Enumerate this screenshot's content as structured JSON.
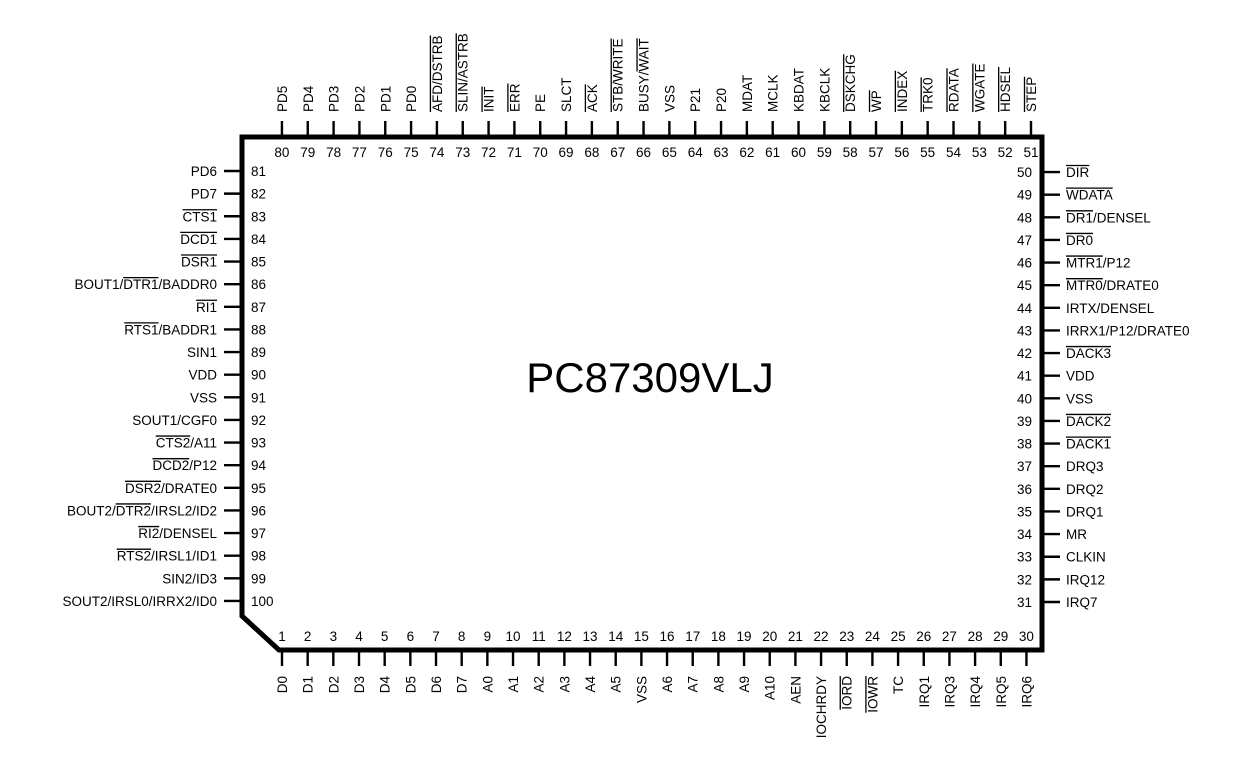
{
  "chip_name": "PC87309VLJ",
  "pins": [
    {
      "n": "1",
      "label": "D0"
    },
    {
      "n": "2",
      "label": "D1"
    },
    {
      "n": "3",
      "label": "D2"
    },
    {
      "n": "4",
      "label": "D3"
    },
    {
      "n": "5",
      "label": "D4"
    },
    {
      "n": "6",
      "label": "D5"
    },
    {
      "n": "7",
      "label": "D6"
    },
    {
      "n": "8",
      "label": "D7"
    },
    {
      "n": "9",
      "label": "A0"
    },
    {
      "n": "10",
      "label": "A1"
    },
    {
      "n": "11",
      "label": "A2"
    },
    {
      "n": "12",
      "label": "A3"
    },
    {
      "n": "13",
      "label": "A4"
    },
    {
      "n": "14",
      "label": "A5"
    },
    {
      "n": "15",
      "label": "VSS"
    },
    {
      "n": "16",
      "label": "A6"
    },
    {
      "n": "17",
      "label": "A7"
    },
    {
      "n": "18",
      "label": "A8"
    },
    {
      "n": "19",
      "label": "A9"
    },
    {
      "n": "20",
      "label": "A10"
    },
    {
      "n": "21",
      "label": "AEN"
    },
    {
      "n": "22",
      "label": "IOCHRDY"
    },
    {
      "n": "23",
      "label": "IORD",
      "bar": [
        [
          0,
          4
        ]
      ]
    },
    {
      "n": "24",
      "label": "IOWR",
      "bar": [
        [
          0,
          4
        ]
      ]
    },
    {
      "n": "25",
      "label": "TC"
    },
    {
      "n": "26",
      "label": "IRQ1"
    },
    {
      "n": "27",
      "label": "IRQ3"
    },
    {
      "n": "28",
      "label": "IRQ4"
    },
    {
      "n": "29",
      "label": "IRQ5"
    },
    {
      "n": "30",
      "label": "IRQ6"
    },
    {
      "n": "31",
      "label": "IRQ7"
    },
    {
      "n": "32",
      "label": "IRQ12"
    },
    {
      "n": "33",
      "label": "CLKIN"
    },
    {
      "n": "34",
      "label": "MR"
    },
    {
      "n": "35",
      "label": "DRQ1"
    },
    {
      "n": "36",
      "label": "DRQ2"
    },
    {
      "n": "37",
      "label": "DRQ3"
    },
    {
      "n": "38",
      "label": "DACK1",
      "bar": [
        [
          0,
          5
        ]
      ]
    },
    {
      "n": "39",
      "label": "DACK2",
      "bar": [
        [
          0,
          5
        ]
      ]
    },
    {
      "n": "40",
      "label": "VSS"
    },
    {
      "n": "41",
      "label": "VDD"
    },
    {
      "n": "42",
      "label": "DACK3",
      "bar": [
        [
          0,
          5
        ]
      ]
    },
    {
      "n": "43",
      "label": "IRRX1/P12/DRATE0"
    },
    {
      "n": "44",
      "label": "IRTX/DENSEL"
    },
    {
      "n": "45",
      "label": "MTR0/DRATE0",
      "bar": [
        [
          0,
          4
        ]
      ]
    },
    {
      "n": "46",
      "label": "MTR1/P12",
      "bar": [
        [
          0,
          4
        ]
      ]
    },
    {
      "n": "47",
      "label": "DR0",
      "bar": [
        [
          0,
          3
        ]
      ]
    },
    {
      "n": "48",
      "label": "DR1/DENSEL",
      "bar": [
        [
          0,
          3
        ]
      ]
    },
    {
      "n": "49",
      "label": "WDATA",
      "bar": [
        [
          0,
          5
        ]
      ]
    },
    {
      "n": "50",
      "label": "DIR",
      "bar": [
        [
          0,
          3
        ]
      ]
    },
    {
      "n": "51",
      "label": "STEP",
      "bar": [
        [
          0,
          4
        ]
      ]
    },
    {
      "n": "52",
      "label": "HDSEL",
      "bar": [
        [
          0,
          5
        ]
      ]
    },
    {
      "n": "53",
      "label": "WGATE",
      "bar": [
        [
          0,
          5
        ]
      ]
    },
    {
      "n": "54",
      "label": "RDATA",
      "bar": [
        [
          0,
          5
        ]
      ]
    },
    {
      "n": "55",
      "label": "TRK0",
      "bar": [
        [
          0,
          4
        ]
      ]
    },
    {
      "n": "56",
      "label": "INDEX",
      "bar": [
        [
          0,
          5
        ]
      ]
    },
    {
      "n": "57",
      "label": "WP",
      "bar": [
        [
          0,
          2
        ]
      ]
    },
    {
      "n": "58",
      "label": "DSKCHG",
      "bar": [
        [
          0,
          6
        ]
      ]
    },
    {
      "n": "59",
      "label": "KBCLK"
    },
    {
      "n": "60",
      "label": "KBDAT"
    },
    {
      "n": "61",
      "label": "MCLK"
    },
    {
      "n": "62",
      "label": "MDAT"
    },
    {
      "n": "63",
      "label": "P20"
    },
    {
      "n": "64",
      "label": "P21"
    },
    {
      "n": "65",
      "label": "VSS"
    },
    {
      "n": "66",
      "label": "BUSY/WAIT",
      "bar": [
        [
          5,
          9
        ]
      ]
    },
    {
      "n": "67",
      "label": "STB/WRITE",
      "bar": [
        [
          0,
          9
        ]
      ]
    },
    {
      "n": "68",
      "label": "ACK",
      "bar": [
        [
          0,
          3
        ]
      ]
    },
    {
      "n": "69",
      "label": "SLCT"
    },
    {
      "n": "70",
      "label": "PE"
    },
    {
      "n": "71",
      "label": "ERR",
      "bar": [
        [
          0,
          3
        ]
      ]
    },
    {
      "n": "72",
      "label": "INIT",
      "bar": [
        [
          0,
          4
        ]
      ]
    },
    {
      "n": "73",
      "label": "SLIN/ASTRB",
      "bar": [
        [
          0,
          10
        ]
      ]
    },
    {
      "n": "74",
      "label": "AFD/DSTRB",
      "bar": [
        [
          0,
          9
        ]
      ]
    },
    {
      "n": "75",
      "label": "PD0"
    },
    {
      "n": "76",
      "label": "PD1"
    },
    {
      "n": "77",
      "label": "PD2"
    },
    {
      "n": "78",
      "label": "PD3"
    },
    {
      "n": "79",
      "label": "PD4"
    },
    {
      "n": "80",
      "label": "PD5"
    },
    {
      "n": "81",
      "label": "PD6"
    },
    {
      "n": "82",
      "label": "PD7"
    },
    {
      "n": "83",
      "label": "CTS1",
      "bar": [
        [
          0,
          4
        ]
      ]
    },
    {
      "n": "84",
      "label": "DCD1",
      "bar": [
        [
          0,
          4
        ]
      ]
    },
    {
      "n": "85",
      "label": "DSR1",
      "bar": [
        [
          0,
          4
        ]
      ]
    },
    {
      "n": "86",
      "label": "BOUT1/DTR1/BADDR0",
      "bar": [
        [
          6,
          10
        ]
      ]
    },
    {
      "n": "87",
      "label": "RI1",
      "bar": [
        [
          0,
          3
        ]
      ]
    },
    {
      "n": "88",
      "label": "RTS1/BADDR1",
      "bar": [
        [
          0,
          4
        ]
      ]
    },
    {
      "n": "89",
      "label": "SIN1"
    },
    {
      "n": "90",
      "label": "VDD"
    },
    {
      "n": "91",
      "label": "VSS"
    },
    {
      "n": "92",
      "label": "SOUT1/CGF0"
    },
    {
      "n": "93",
      "label": "CTS2/A11",
      "bar": [
        [
          0,
          4
        ]
      ]
    },
    {
      "n": "94",
      "label": "DCD2/P12",
      "bar": [
        [
          0,
          4
        ]
      ]
    },
    {
      "n": "95",
      "label": "DSR2/DRATE0",
      "bar": [
        [
          0,
          4
        ]
      ]
    },
    {
      "n": "96",
      "label": "BOUT2/DTR2/IRSL2/ID2",
      "bar": [
        [
          6,
          10
        ]
      ]
    },
    {
      "n": "97",
      "label": "RI2/DENSEL",
      "bar": [
        [
          0,
          3
        ]
      ]
    },
    {
      "n": "98",
      "label": "RTS2/IRSL1/ID1",
      "bar": [
        [
          0,
          4
        ]
      ]
    },
    {
      "n": "99",
      "label": "SIN2/ID3"
    },
    {
      "n": "100",
      "label": "SOUT2/IRSL0/IRRX2/ID0"
    }
  ]
}
